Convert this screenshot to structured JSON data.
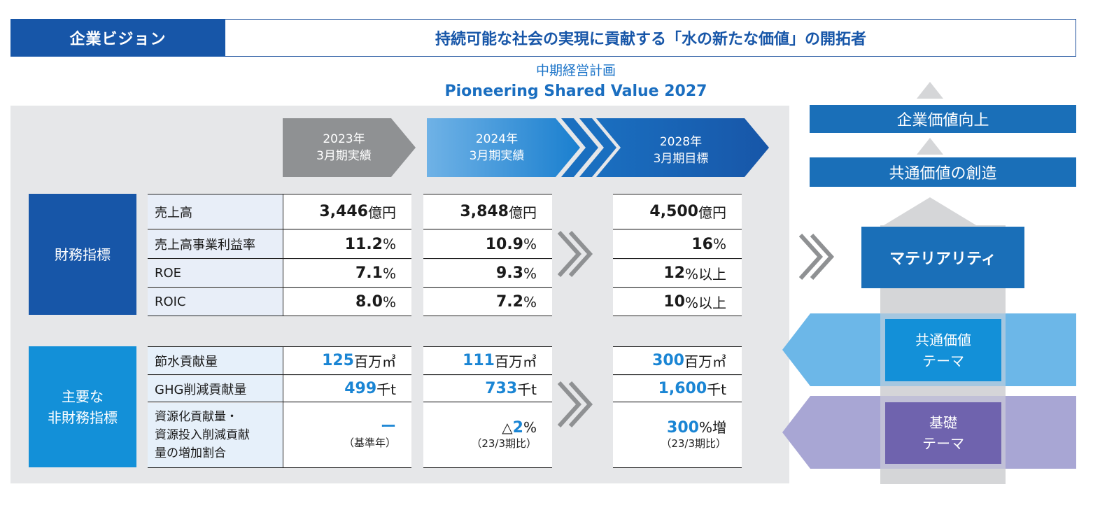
{
  "header": {
    "vision_label": "企業ビジョン",
    "vision_text": "持続可能な社会の実現に貢献する「水の新たな価値」の開拓者"
  },
  "plan": {
    "title": "中期経営計画",
    "subtitle": "Pioneering Shared Value 2027"
  },
  "periods": [
    {
      "line1": "2023年",
      "line2": "3月期実績"
    },
    {
      "line1": "2024年",
      "line2": "3月期実績"
    },
    {
      "line1": "2028年",
      "line2": "3月期目標"
    }
  ],
  "financial": {
    "label": "財務指標",
    "rows": [
      {
        "label": "売上高",
        "v2023": {
          "num": "3,446",
          "unit": "億円"
        },
        "v2024": {
          "num": "3,848",
          "unit": "億円"
        },
        "v2028": {
          "num": "4,500",
          "unit": "億円"
        }
      },
      {
        "label": "売上高事業利益率",
        "v2023": {
          "num": "11.2",
          "unit": "%"
        },
        "v2024": {
          "num": "10.9",
          "unit": "%"
        },
        "v2028": {
          "num": "16",
          "unit": "%"
        }
      },
      {
        "label": "ROE",
        "v2023": {
          "num": "7.1",
          "unit": "%"
        },
        "v2024": {
          "num": "9.3",
          "unit": "%"
        },
        "v2028": {
          "num": "12",
          "unit": "%以上"
        }
      },
      {
        "label": "ROIC",
        "v2023": {
          "num": "8.0",
          "unit": "%"
        },
        "v2024": {
          "num": "7.2",
          "unit": "%"
        },
        "v2028": {
          "num": "10",
          "unit": "%以上"
        }
      }
    ]
  },
  "nonfinancial": {
    "label_line1": "主要な",
    "label_line2": "非財務指標",
    "rows": [
      {
        "label": "節水貢献量",
        "v2023": {
          "num": "125",
          "unit": "百万㎥"
        },
        "v2024": {
          "num": "111",
          "unit": "百万㎥"
        },
        "v2028": {
          "num": "300",
          "unit": "百万㎥"
        }
      },
      {
        "label": "GHG削減貢献量",
        "v2023": {
          "num": "499",
          "unit": "千t"
        },
        "v2024": {
          "num": "733",
          "unit": "千t"
        },
        "v2028": {
          "num": "1,600",
          "unit": "千t"
        }
      }
    ],
    "resource": {
      "label_line1": "資源化貢献量・",
      "label_line2": "資源投入削減貢献",
      "label_line3": "量の増加割合",
      "v2023_num": "ー",
      "v2023_note": "（基準年）",
      "v2024_prefix": "△",
      "v2024_num": "2",
      "v2024_unit": "%",
      "v2024_note": "（23/3期比）",
      "v2028_num": "300",
      "v2028_unit": "%増",
      "v2028_note": "（23/3期比）"
    }
  },
  "right": {
    "enterprise_value": "企業価値向上",
    "shared_value": "共通価値の創造",
    "materiality": "マテリアリティ",
    "theme1_line1": "共通価値",
    "theme1_line2": "テーマ",
    "theme2_line1": "基礎",
    "theme2_line2": "テーマ"
  },
  "colors": {
    "primary_blue": "#1756a8",
    "light_blue": "#1390d8",
    "accent_blue": "#1a85d4",
    "purple": "#6f63ae",
    "gray_arrow": "#8f9193"
  }
}
